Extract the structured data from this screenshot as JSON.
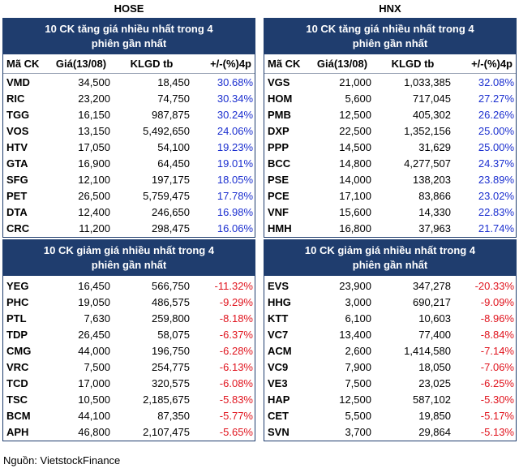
{
  "source": "Nguồn: VietstockFinance",
  "headers": [
    "Mã CK",
    "Giá(13/08)",
    "KLGD tb",
    "+/-(%)4p"
  ],
  "up_title": [
    "10 CK tăng giá nhiều nhất trong 4",
    "phiên gần nhất"
  ],
  "down_title": [
    "10 CK giảm giá nhiều nhất trong 4",
    "phiên gần nhất"
  ],
  "colors": {
    "band": "#1f3d6e",
    "up": "#1b2fcf",
    "down": "#e0141e"
  },
  "hose": {
    "name": "HOSE",
    "up": [
      [
        "VMD",
        "34,500",
        "18,450",
        "30.68%"
      ],
      [
        "RIC",
        "23,200",
        "74,750",
        "30.34%"
      ],
      [
        "TGG",
        "16,150",
        "987,875",
        "30.24%"
      ],
      [
        "VOS",
        "13,150",
        "5,492,650",
        "24.06%"
      ],
      [
        "HTV",
        "17,050",
        "54,100",
        "19.23%"
      ],
      [
        "GTA",
        "16,900",
        "64,450",
        "19.01%"
      ],
      [
        "SFG",
        "12,100",
        "197,175",
        "18.05%"
      ],
      [
        "PET",
        "26,500",
        "5,759,475",
        "17.78%"
      ],
      [
        "DTA",
        "12,400",
        "246,650",
        "16.98%"
      ],
      [
        "CRC",
        "11,200",
        "298,475",
        "16.06%"
      ]
    ],
    "down": [
      [
        "YEG",
        "16,450",
        "566,750",
        "-11.32%"
      ],
      [
        "PHC",
        "19,050",
        "486,575",
        "-9.29%"
      ],
      [
        "PTL",
        "7,630",
        "259,800",
        "-8.18%"
      ],
      [
        "TDP",
        "26,450",
        "58,075",
        "-6.37%"
      ],
      [
        "CMG",
        "44,000",
        "196,750",
        "-6.28%"
      ],
      [
        "VRC",
        "7,500",
        "254,775",
        "-6.13%"
      ],
      [
        "TCD",
        "17,000",
        "320,575",
        "-6.08%"
      ],
      [
        "TSC",
        "10,500",
        "2,185,675",
        "-5.83%"
      ],
      [
        "BCM",
        "44,100",
        "87,350",
        "-5.77%"
      ],
      [
        "APH",
        "46,800",
        "2,107,475",
        "-5.65%"
      ]
    ]
  },
  "hnx": {
    "name": "HNX",
    "up": [
      [
        "VGS",
        "21,000",
        "1,033,385",
        "32.08%"
      ],
      [
        "HOM",
        "5,600",
        "717,045",
        "27.27%"
      ],
      [
        "PMB",
        "12,500",
        "405,302",
        "26.26%"
      ],
      [
        "DXP",
        "22,500",
        "1,352,156",
        "25.00%"
      ],
      [
        "PPP",
        "14,500",
        "31,629",
        "25.00%"
      ],
      [
        "BCC",
        "14,800",
        "4,277,507",
        "24.37%"
      ],
      [
        "PSE",
        "14,000",
        "138,203",
        "23.89%"
      ],
      [
        "PCE",
        "17,100",
        "83,866",
        "23.02%"
      ],
      [
        "VNF",
        "15,600",
        "14,330",
        "22.83%"
      ],
      [
        "HMH",
        "16,800",
        "37,963",
        "21.74%"
      ]
    ],
    "down": [
      [
        "EVS",
        "23,900",
        "347,278",
        "-20.33%"
      ],
      [
        "HHG",
        "3,000",
        "690,217",
        "-9.09%"
      ],
      [
        "KTT",
        "6,100",
        "10,603",
        "-8.96%"
      ],
      [
        "VC7",
        "13,400",
        "77,400",
        "-8.84%"
      ],
      [
        "ACM",
        "2,600",
        "1,414,580",
        "-7.14%"
      ],
      [
        "VC9",
        "7,900",
        "18,050",
        "-7.06%"
      ],
      [
        "VE3",
        "7,500",
        "23,025",
        "-6.25%"
      ],
      [
        "HAP",
        "12,500",
        "587,102",
        "-5.30%"
      ],
      [
        "CET",
        "5,500",
        "19,850",
        "-5.17%"
      ],
      [
        "SVN",
        "3,700",
        "29,864",
        "-5.13%"
      ]
    ]
  }
}
